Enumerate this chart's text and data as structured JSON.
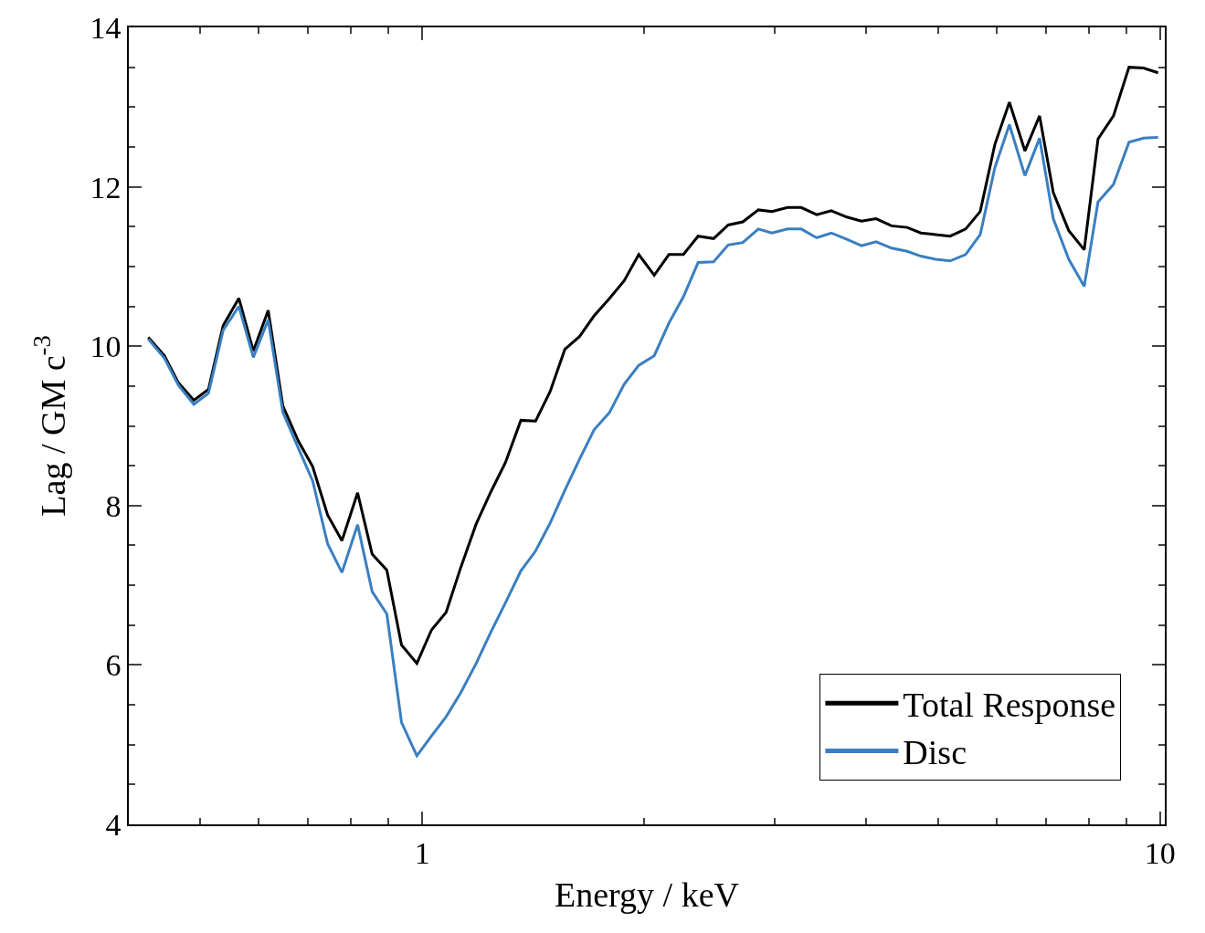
{
  "chart_data": {
    "type": "line",
    "xlabel": "Energy / keV",
    "ylabel": "Lag / GM c$^{-3}$",
    "x": [
      0.425,
      0.447,
      0.467,
      0.49,
      0.513,
      0.537,
      0.564,
      0.59,
      0.618,
      0.647,
      0.679,
      0.71,
      0.744,
      0.778,
      0.817,
      0.855,
      0.895,
      0.937,
      0.983,
      1.029,
      1.077,
      1.127,
      1.183,
      1.238,
      1.296,
      1.36,
      1.424,
      1.49,
      1.56,
      1.633,
      1.709,
      1.794,
      1.877,
      1.965,
      2.062,
      2.159,
      2.259,
      2.365,
      2.482,
      2.598,
      2.719,
      2.854,
      2.978,
      3.126,
      3.263,
      3.424,
      3.584,
      3.762,
      3.938,
      4.122,
      4.326,
      4.541,
      4.74,
      4.961,
      5.193,
      5.451,
      5.705,
      5.971,
      6.249,
      6.559,
      6.866,
      7.166,
      7.521,
      7.893,
      8.24,
      8.648,
      9.077,
      9.5,
      9.94
    ],
    "series": [
      {
        "name": "Total Response",
        "color": "#000000",
        "values": [
          10.11,
          9.88,
          9.54,
          9.32,
          9.46,
          10.26,
          10.6,
          9.94,
          10.45,
          9.25,
          8.81,
          8.49,
          7.88,
          7.56,
          8.16,
          7.39,
          7.19,
          6.25,
          6.02,
          6.44,
          6.66,
          7.22,
          7.77,
          8.17,
          8.54,
          9.07,
          9.06,
          9.43,
          9.96,
          10.12,
          10.38,
          10.6,
          10.82,
          11.15,
          10.89,
          11.15,
          11.15,
          11.38,
          11.35,
          11.52,
          11.56,
          11.71,
          11.69,
          11.74,
          11.74,
          11.65,
          11.7,
          11.62,
          11.57,
          11.6,
          11.51,
          11.49,
          11.42,
          11.4,
          11.38,
          11.47,
          11.69,
          12.53,
          13.06,
          12.45,
          12.89,
          11.93,
          11.45,
          11.21,
          12.6,
          12.89,
          13.5,
          13.49,
          13.43
        ]
      },
      {
        "name": "Disc",
        "color": "#3a7fc1",
        "values": [
          10.09,
          9.85,
          9.51,
          9.27,
          9.41,
          10.2,
          10.5,
          9.86,
          10.33,
          9.17,
          8.72,
          8.31,
          7.52,
          7.16,
          7.76,
          6.92,
          6.64,
          5.28,
          4.86,
          5.11,
          5.35,
          5.65,
          6.02,
          6.41,
          6.78,
          7.18,
          7.43,
          7.78,
          8.19,
          8.58,
          8.95,
          9.17,
          9.52,
          9.76,
          9.88,
          10.29,
          10.62,
          11.05,
          11.06,
          11.27,
          11.3,
          11.47,
          11.42,
          11.47,
          11.47,
          11.36,
          11.42,
          11.34,
          11.26,
          11.31,
          11.23,
          11.19,
          11.13,
          11.09,
          11.07,
          11.15,
          11.4,
          12.24,
          12.78,
          12.14,
          12.61,
          11.6,
          11.09,
          10.75,
          11.81,
          12.03,
          12.56,
          12.61,
          12.62
        ]
      }
    ],
    "log": "x",
    "xlim": [
      0.4,
      10.15
    ],
    "ylim": [
      4,
      14
    ],
    "xticks": [
      {
        "value": 0.4,
        "label": null
      },
      {
        "value": 0.5,
        "label": null
      },
      {
        "value": 0.6,
        "label": null
      },
      {
        "value": 0.7,
        "label": null
      },
      {
        "value": 0.8,
        "label": null
      },
      {
        "value": 0.9,
        "label": null
      },
      1,
      {
        "value": 2,
        "label": null
      },
      {
        "value": 3,
        "label": null
      },
      {
        "value": 4,
        "label": null
      },
      {
        "value": 5,
        "label": null
      },
      {
        "value": 6,
        "label": null
      },
      {
        "value": 7,
        "label": null
      },
      {
        "value": 8,
        "label": null
      },
      {
        "value": 9,
        "label": null
      },
      10
    ],
    "yticks": [
      4,
      {
        "value": 4.5,
        "label": null
      },
      6,
      {
        "value": 6.5,
        "label": null
      },
      8,
      {
        "value": 8.5,
        "label": null
      },
      10,
      {
        "value": 10.5,
        "label": null
      },
      12,
      {
        "value": 12.5,
        "label": null
      },
      14,
      {
        "value": 5,
        "label": null
      },
      {
        "value": 5.5,
        "label": null
      },
      {
        "value": 7,
        "label": null
      },
      {
        "value": 7.5,
        "label": null
      },
      {
        "value": 9,
        "label": null
      },
      {
        "value": 9.5,
        "label": null
      },
      {
        "value": 11,
        "label": null
      },
      {
        "value": 11.5,
        "label": null
      },
      {
        "value": 13,
        "label": null
      },
      {
        "value": 13.5,
        "label": null
      }
    ],
    "legend": "bottom right",
    "marker": "none",
    "line_style": "solid"
  }
}
